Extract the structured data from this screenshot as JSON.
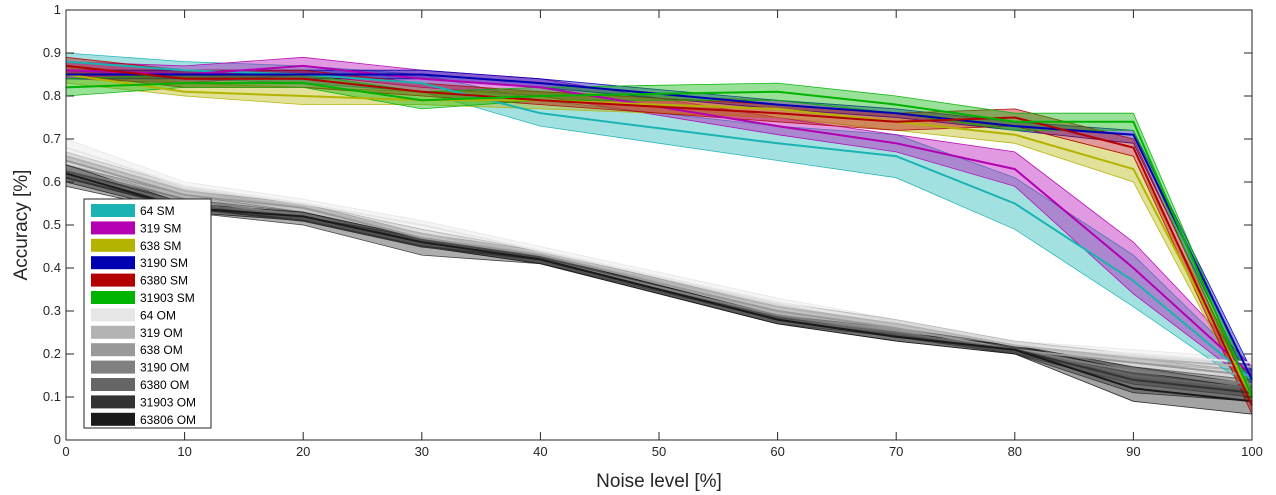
{
  "chart_data": {
    "type": "line",
    "title": "",
    "xlabel": "Noise level [%]",
    "ylabel": "Accuracy [%]",
    "xlim": [
      0,
      100
    ],
    "ylim": [
      0,
      1
    ],
    "x_ticks": [
      0,
      10,
      20,
      30,
      40,
      50,
      60,
      70,
      80,
      90,
      100
    ],
    "y_ticks": [
      0,
      0.1,
      0.2,
      0.3,
      0.4,
      0.5,
      0.6,
      0.7,
      0.8,
      0.9,
      1
    ],
    "y_tick_labels": [
      "0",
      "0.1",
      "0.2",
      "0.3",
      "0.4",
      "0.5",
      "0.6",
      "0.7",
      "0.8",
      "0.9",
      "1"
    ],
    "grid": false,
    "legend_position": "left",
    "x": [
      0,
      10,
      20,
      30,
      40,
      60,
      70,
      80,
      90,
      100
    ],
    "series": [
      {
        "name": "64 SM",
        "color": "#1ab3b3",
        "values": [
          0.88,
          0.86,
          0.85,
          0.83,
          0.76,
          0.69,
          0.66,
          0.55,
          0.37,
          0.14
        ],
        "lower": [
          0.86,
          0.84,
          0.83,
          0.81,
          0.73,
          0.65,
          0.61,
          0.49,
          0.31,
          0.12
        ],
        "upper": [
          0.9,
          0.88,
          0.87,
          0.85,
          0.79,
          0.73,
          0.71,
          0.61,
          0.43,
          0.16
        ]
      },
      {
        "name": "319 SM",
        "color": "#b300b3",
        "values": [
          0.86,
          0.85,
          0.87,
          0.84,
          0.82,
          0.73,
          0.69,
          0.63,
          0.4,
          0.15
        ],
        "lower": [
          0.84,
          0.83,
          0.85,
          0.82,
          0.8,
          0.71,
          0.67,
          0.59,
          0.34,
          0.13
        ],
        "upper": [
          0.88,
          0.87,
          0.89,
          0.86,
          0.84,
          0.75,
          0.71,
          0.67,
          0.46,
          0.17
        ]
      },
      {
        "name": "638 SM",
        "color": "#b3b300",
        "values": [
          0.85,
          0.81,
          0.8,
          0.79,
          0.79,
          0.77,
          0.74,
          0.71,
          0.63,
          0.1
        ],
        "lower": [
          0.83,
          0.8,
          0.78,
          0.78,
          0.77,
          0.75,
          0.72,
          0.69,
          0.6,
          0.08
        ],
        "upper": [
          0.87,
          0.83,
          0.82,
          0.81,
          0.81,
          0.79,
          0.76,
          0.73,
          0.66,
          0.12
        ]
      },
      {
        "name": "3190 SM",
        "color": "#0000b3",
        "values": [
          0.85,
          0.85,
          0.85,
          0.85,
          0.83,
          0.78,
          0.76,
          0.73,
          0.71,
          0.14
        ],
        "lower": [
          0.84,
          0.84,
          0.84,
          0.84,
          0.82,
          0.77,
          0.75,
          0.72,
          0.69,
          0.12
        ],
        "upper": [
          0.86,
          0.86,
          0.86,
          0.86,
          0.84,
          0.79,
          0.77,
          0.74,
          0.72,
          0.16
        ]
      },
      {
        "name": "6380 SM",
        "color": "#b30000",
        "values": [
          0.87,
          0.84,
          0.84,
          0.81,
          0.79,
          0.76,
          0.74,
          0.75,
          0.68,
          0.08
        ],
        "lower": [
          0.85,
          0.82,
          0.82,
          0.8,
          0.78,
          0.74,
          0.72,
          0.73,
          0.66,
          0.06
        ],
        "upper": [
          0.89,
          0.86,
          0.86,
          0.83,
          0.81,
          0.78,
          0.76,
          0.77,
          0.7,
          0.1
        ]
      },
      {
        "name": "31903 SM",
        "color": "#00b300",
        "values": [
          0.82,
          0.83,
          0.83,
          0.79,
          0.8,
          0.81,
          0.78,
          0.74,
          0.74,
          0.1
        ],
        "lower": [
          0.8,
          0.82,
          0.82,
          0.77,
          0.79,
          0.79,
          0.76,
          0.72,
          0.72,
          0.08
        ],
        "upper": [
          0.84,
          0.85,
          0.85,
          0.81,
          0.82,
          0.83,
          0.8,
          0.76,
          0.76,
          0.12
        ]
      },
      {
        "name": "64 OM",
        "color": "#e6e6e6",
        "values": [
          0.68,
          0.59,
          0.55,
          0.5,
          0.44,
          0.32,
          0.27,
          0.22,
          0.2,
          0.18
        ],
        "lower": [
          0.66,
          0.58,
          0.54,
          0.49,
          0.43,
          0.31,
          0.26,
          0.21,
          0.19,
          0.17
        ],
        "upper": [
          0.7,
          0.6,
          0.56,
          0.51,
          0.45,
          0.33,
          0.28,
          0.23,
          0.21,
          0.19
        ]
      },
      {
        "name": "319 OM",
        "color": "#b3b3b3",
        "values": [
          0.66,
          0.58,
          0.54,
          0.48,
          0.43,
          0.31,
          0.27,
          0.22,
          0.19,
          0.17
        ],
        "lower": [
          0.65,
          0.57,
          0.53,
          0.47,
          0.42,
          0.3,
          0.26,
          0.21,
          0.18,
          0.16
        ],
        "upper": [
          0.67,
          0.59,
          0.55,
          0.49,
          0.44,
          0.32,
          0.28,
          0.23,
          0.2,
          0.18
        ]
      },
      {
        "name": "638 OM",
        "color": "#999999",
        "values": [
          0.65,
          0.57,
          0.54,
          0.47,
          0.43,
          0.3,
          0.26,
          0.21,
          0.18,
          0.15
        ],
        "lower": [
          0.64,
          0.56,
          0.53,
          0.46,
          0.42,
          0.29,
          0.25,
          0.2,
          0.17,
          0.14
        ],
        "upper": [
          0.66,
          0.58,
          0.55,
          0.48,
          0.44,
          0.31,
          0.27,
          0.22,
          0.19,
          0.16
        ]
      },
      {
        "name": "3190 OM",
        "color": "#808080",
        "values": [
          0.63,
          0.56,
          0.52,
          0.46,
          0.42,
          0.29,
          0.25,
          0.21,
          0.16,
          0.13
        ],
        "lower": [
          0.62,
          0.55,
          0.51,
          0.45,
          0.41,
          0.28,
          0.24,
          0.2,
          0.15,
          0.12
        ],
        "upper": [
          0.64,
          0.57,
          0.53,
          0.47,
          0.43,
          0.3,
          0.26,
          0.22,
          0.17,
          0.14
        ]
      },
      {
        "name": "6380 OM",
        "color": "#666666",
        "values": [
          0.62,
          0.55,
          0.52,
          0.46,
          0.42,
          0.28,
          0.25,
          0.21,
          0.15,
          0.12
        ],
        "lower": [
          0.61,
          0.54,
          0.51,
          0.45,
          0.41,
          0.27,
          0.24,
          0.2,
          0.13,
          0.1
        ],
        "upper": [
          0.63,
          0.56,
          0.53,
          0.47,
          0.43,
          0.29,
          0.26,
          0.22,
          0.17,
          0.14
        ]
      },
      {
        "name": "31903 OM",
        "color": "#333333",
        "values": [
          0.61,
          0.54,
          0.51,
          0.45,
          0.42,
          0.28,
          0.24,
          0.21,
          0.14,
          0.11
        ],
        "lower": [
          0.59,
          0.53,
          0.5,
          0.43,
          0.41,
          0.27,
          0.23,
          0.2,
          0.11,
          0.09
        ],
        "upper": [
          0.63,
          0.55,
          0.52,
          0.47,
          0.43,
          0.29,
          0.25,
          0.22,
          0.17,
          0.13
        ]
      },
      {
        "name": "63806 OM",
        "color": "#1a1a1a",
        "values": [
          0.62,
          0.54,
          0.52,
          0.46,
          0.42,
          0.28,
          0.24,
          0.21,
          0.12,
          0.09
        ],
        "lower": [
          0.6,
          0.53,
          0.51,
          0.45,
          0.41,
          0.27,
          0.23,
          0.2,
          0.09,
          0.06
        ],
        "upper": [
          0.64,
          0.55,
          0.53,
          0.47,
          0.43,
          0.29,
          0.25,
          0.22,
          0.16,
          0.12
        ]
      }
    ]
  }
}
